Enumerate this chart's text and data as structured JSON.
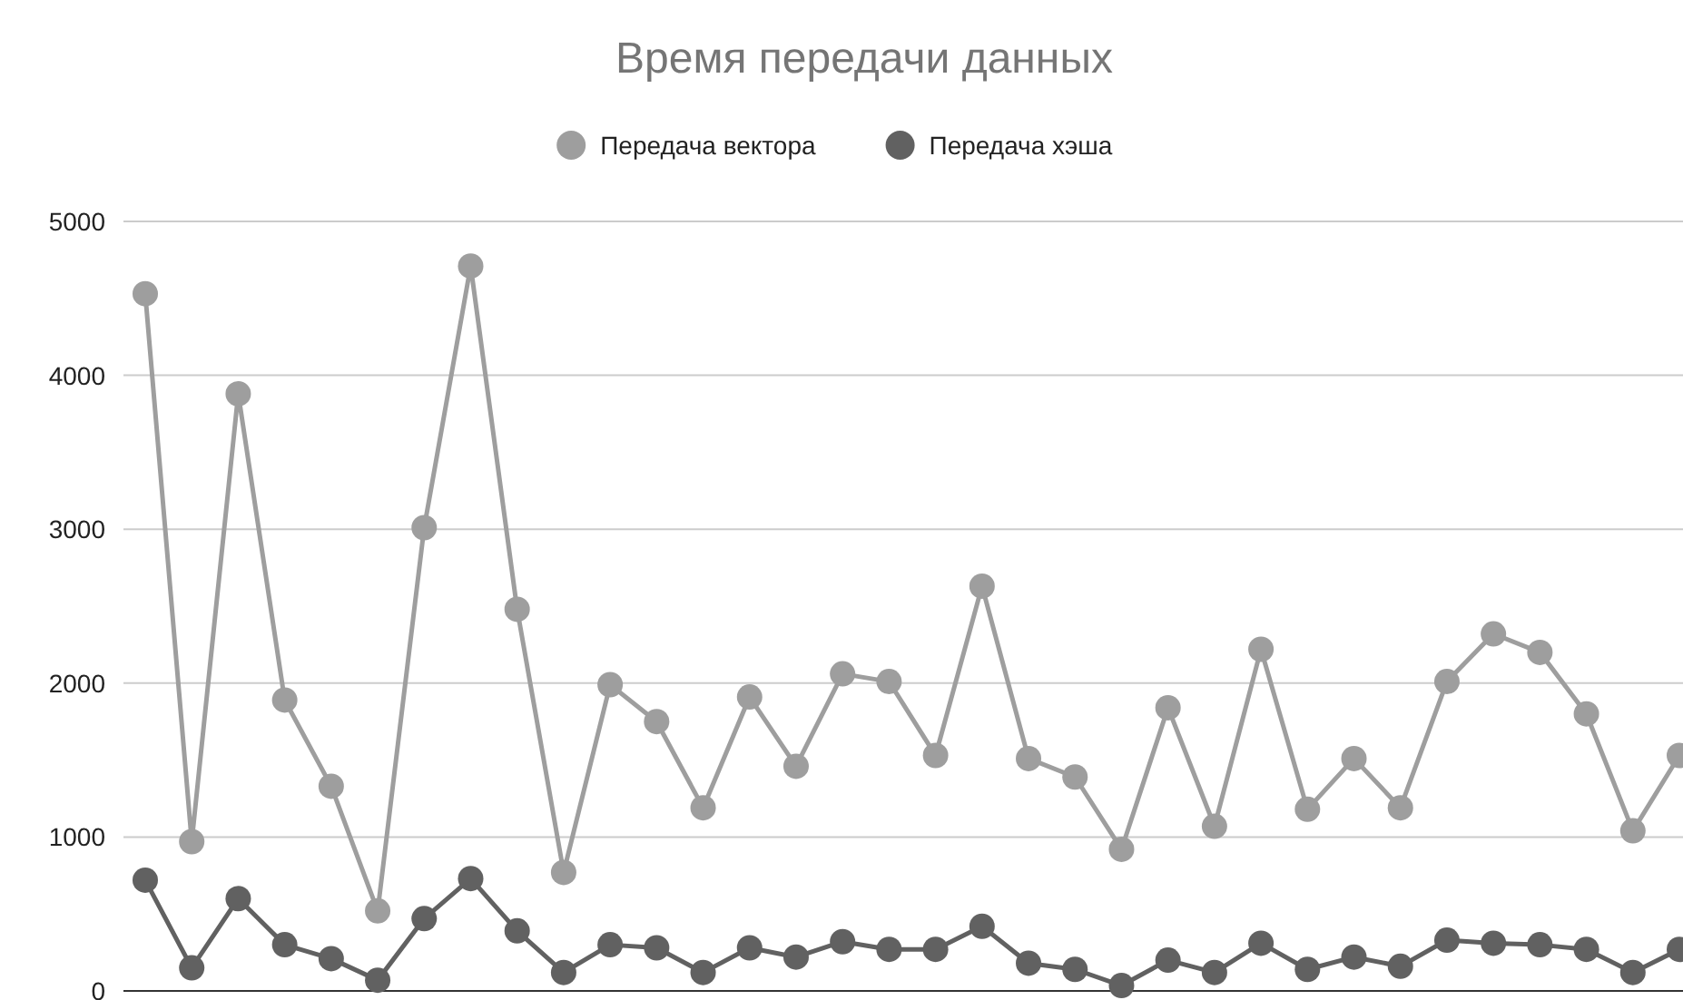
{
  "chart_data": {
    "type": "line",
    "title": "Время передачи данных",
    "categories": [
      null,
      null,
      null,
      null,
      null,
      null,
      null,
      null,
      null,
      null,
      null,
      null,
      null,
      null,
      null,
      null,
      null,
      null,
      null,
      null,
      null,
      null,
      null,
      null,
      null,
      null,
      null,
      null,
      null,
      null,
      null,
      null,
      null,
      null
    ],
    "series": [
      {
        "name": "Передача вектора",
        "color": "#9e9e9e",
        "values": [
          4530,
          970,
          3880,
          1890,
          1330,
          520,
          3010,
          4710,
          2480,
          770,
          1990,
          1750,
          1190,
          1910,
          1460,
          2060,
          2010,
          1530,
          2630,
          1510,
          1390,
          920,
          1840,
          1070,
          2220,
          1180,
          1510,
          1190,
          2010,
          2320,
          2200,
          1800,
          1040,
          1530
        ]
      },
      {
        "name": "Передача хэша",
        "color": "#616161",
        "values": [
          720,
          150,
          600,
          300,
          210,
          70,
          470,
          730,
          390,
          120,
          300,
          280,
          120,
          280,
          220,
          320,
          270,
          270,
          420,
          180,
          140,
          35,
          200,
          120,
          310,
          140,
          220,
          160,
          330,
          310,
          300,
          270,
          120,
          270
        ]
      }
    ],
    "ylim": [
      0,
      5000
    ],
    "yticks": [
      0,
      1000,
      2000,
      3000,
      4000,
      5000
    ],
    "grid": "y",
    "legend": "top",
    "marker": "circle",
    "line_style": "solid"
  }
}
